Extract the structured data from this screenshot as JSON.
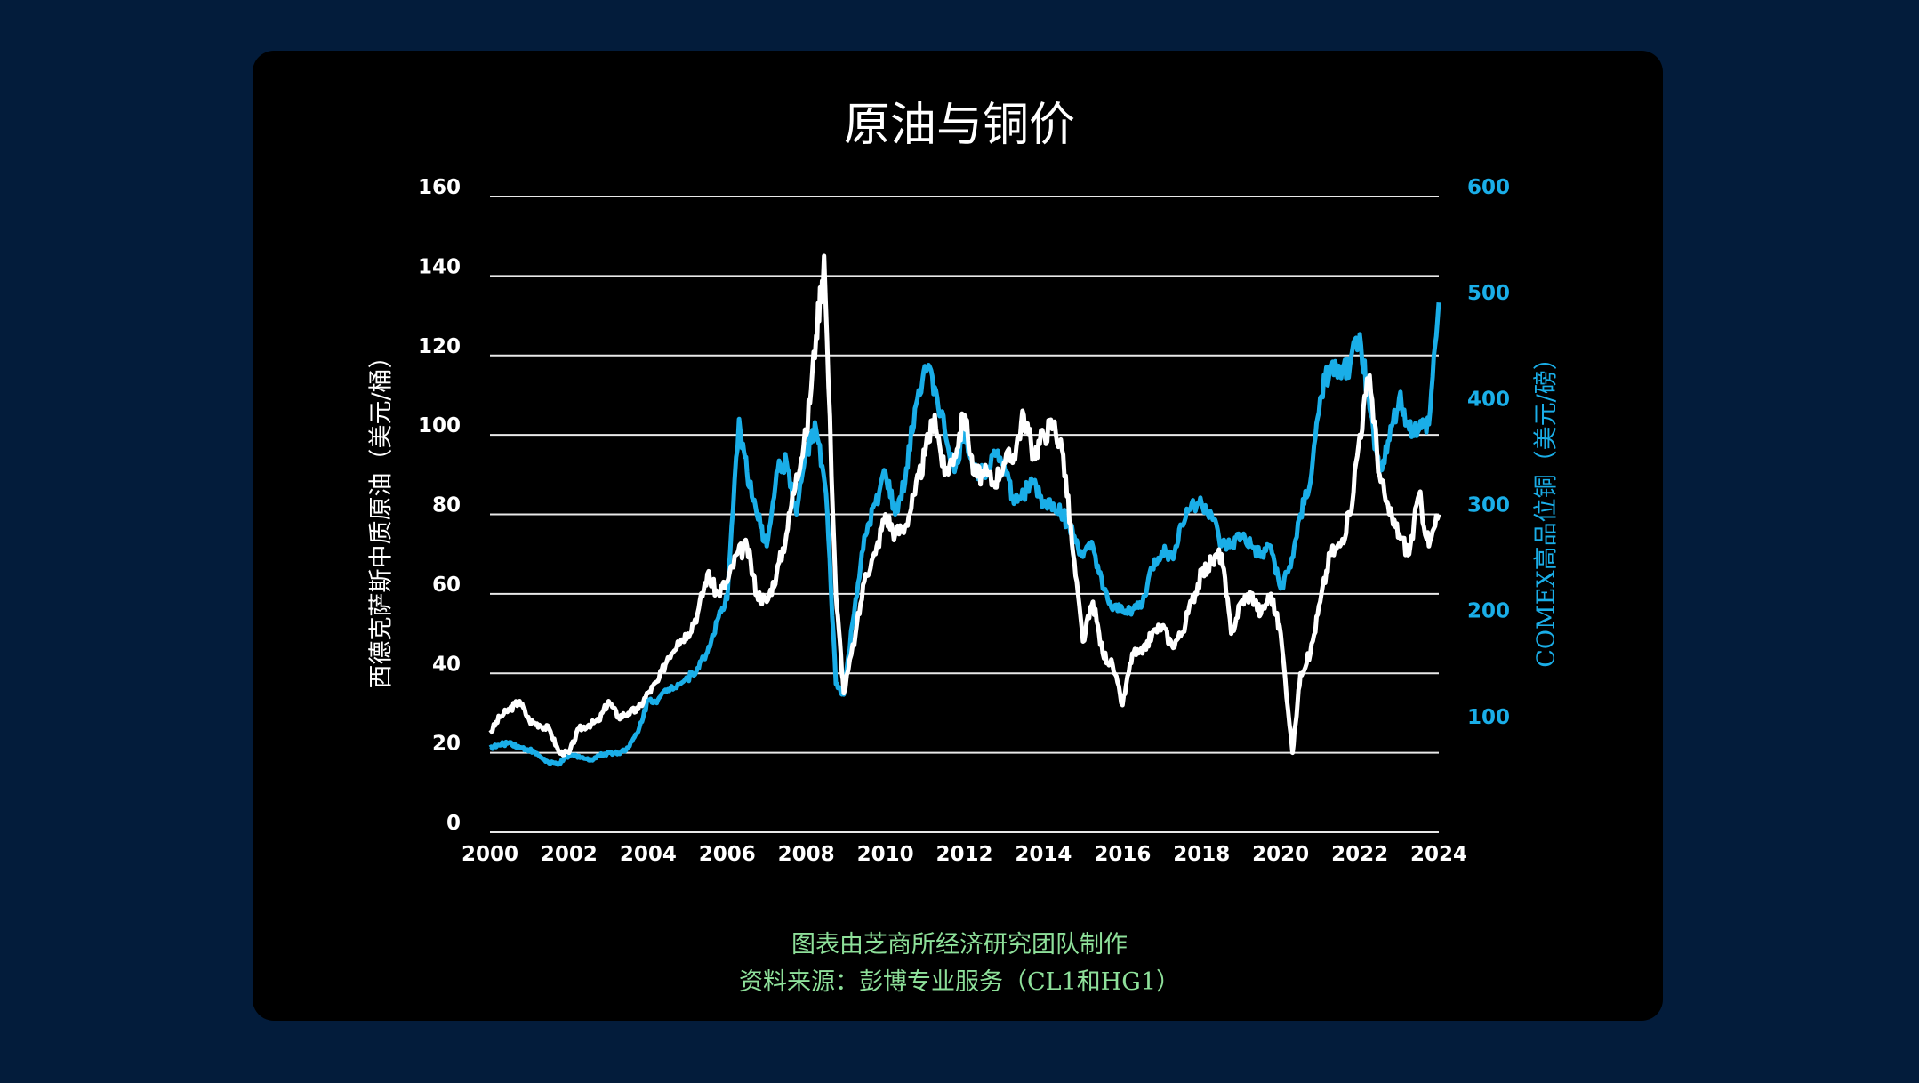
{
  "chart_data": {
    "type": "line",
    "title": "原油与铜价",
    "ylabel_left": "西德克萨斯中质原油（美元/桶）",
    "ylabel_right": "COMEX高品位铜（美元/磅）",
    "xlim": [
      2000,
      2024
    ],
    "ylim_left": [
      0,
      160
    ],
    "ylim_right": [
      0,
      600
    ],
    "x_ticks": [
      "2000",
      "2002",
      "2004",
      "2006",
      "2008",
      "2010",
      "2012",
      "2014",
      "2016",
      "2018",
      "2020",
      "2022",
      "2024"
    ],
    "y_ticks_left": [
      "0",
      "20",
      "40",
      "60",
      "80",
      "100",
      "120",
      "140",
      "160"
    ],
    "y_ticks_right": [
      "100",
      "200",
      "300",
      "400",
      "500",
      "600"
    ],
    "grid": true,
    "colors": {
      "oil": "#ffffff",
      "copper": "#1aaee8",
      "background": "#000000",
      "page": "#031c3b",
      "footer": "#8ee09a"
    },
    "series": [
      {
        "axis": "left",
        "color": "#ffffff",
        "x": [
          2000,
          2000.25,
          2000.5,
          2000.75,
          2001,
          2001.25,
          2001.5,
          2001.75,
          2002,
          2002.25,
          2002.5,
          2002.75,
          2003,
          2003.25,
          2003.5,
          2003.75,
          2004,
          2004.25,
          2004.5,
          2004.75,
          2005,
          2005.25,
          2005.5,
          2005.75,
          2006,
          2006.25,
          2006.5,
          2006.75,
          2007,
          2007.25,
          2007.5,
          2007.75,
          2008,
          2008.25,
          2008.45,
          2008.75,
          2008.95,
          2009.25,
          2009.5,
          2009.75,
          2010,
          2010.25,
          2010.5,
          2010.75,
          2011,
          2011.25,
          2011.5,
          2011.75,
          2012,
          2012.25,
          2012.5,
          2012.75,
          2013,
          2013.25,
          2013.5,
          2013.75,
          2014,
          2014.25,
          2014.5,
          2014.75,
          2015,
          2015.25,
          2015.5,
          2015.75,
          2016,
          2016.25,
          2016.5,
          2016.75,
          2017,
          2017.25,
          2017.5,
          2017.75,
          2018,
          2018.25,
          2018.5,
          2018.75,
          2019,
          2019.25,
          2019.5,
          2019.75,
          2020,
          2020.3,
          2020.5,
          2020.75,
          2021,
          2021.25,
          2021.5,
          2021.75,
          2022,
          2022.25,
          2022.5,
          2022.75,
          2023,
          2023.25,
          2023.5,
          2023.75,
          2024
        ],
        "values": [
          25,
          29,
          31,
          33,
          28,
          27,
          26,
          20,
          20,
          26,
          27,
          28,
          33,
          29,
          30,
          31,
          35,
          38,
          44,
          48,
          50,
          55,
          65,
          60,
          63,
          70,
          72,
          60,
          58,
          65,
          75,
          90,
          100,
          125,
          145,
          60,
          35,
          50,
          65,
          70,
          80,
          75,
          77,
          85,
          95,
          105,
          90,
          95,
          105,
          90,
          90,
          88,
          93,
          95,
          105,
          95,
          100,
          103,
          95,
          70,
          48,
          58,
          45,
          42,
          32,
          45,
          45,
          50,
          52,
          47,
          50,
          58,
          65,
          68,
          70,
          50,
          58,
          60,
          55,
          60,
          50,
          20,
          40,
          45,
          58,
          70,
          72,
          80,
          100,
          115,
          90,
          80,
          75,
          70,
          85,
          72,
          80
        ]
      },
      {
        "axis": "right",
        "color": "#1aaee8",
        "x": [
          2000,
          2000.25,
          2000.5,
          2000.75,
          2001,
          2001.25,
          2001.5,
          2001.75,
          2002,
          2002.25,
          2002.5,
          2002.75,
          2003,
          2003.25,
          2003.5,
          2003.75,
          2004,
          2004.25,
          2004.5,
          2004.75,
          2005,
          2005.25,
          2005.5,
          2005.75,
          2006,
          2006.3,
          2006.5,
          2006.75,
          2007,
          2007.25,
          2007.5,
          2007.75,
          2008,
          2008.25,
          2008.5,
          2008.75,
          2008.95,
          2009.25,
          2009.5,
          2009.75,
          2010,
          2010.25,
          2010.5,
          2010.75,
          2011,
          2011.25,
          2011.5,
          2011.75,
          2012,
          2012.25,
          2012.5,
          2012.75,
          2013,
          2013.25,
          2013.5,
          2013.75,
          2014,
          2014.25,
          2014.5,
          2014.75,
          2015,
          2015.25,
          2015.5,
          2015.75,
          2016,
          2016.25,
          2016.5,
          2016.75,
          2017,
          2017.25,
          2017.5,
          2017.75,
          2018,
          2018.25,
          2018.5,
          2018.75,
          2019,
          2019.25,
          2019.5,
          2019.75,
          2020,
          2020.25,
          2020.5,
          2020.75,
          2021,
          2021.25,
          2021.5,
          2021.75,
          2022,
          2022.25,
          2022.5,
          2022.75,
          2023,
          2023.25,
          2023.5,
          2023.75,
          2024
        ],
        "values": [
          80,
          82,
          85,
          80,
          78,
          72,
          65,
          65,
          72,
          72,
          68,
          72,
          75,
          75,
          80,
          95,
          125,
          125,
          135,
          140,
          145,
          155,
          170,
          200,
          220,
          390,
          340,
          300,
          270,
          340,
          350,
          300,
          360,
          380,
          320,
          140,
          130,
          220,
          280,
          310,
          340,
          300,
          330,
          400,
          440,
          420,
          380,
          340,
          380,
          340,
          340,
          360,
          350,
          310,
          320,
          330,
          310,
          310,
          300,
          280,
          260,
          270,
          230,
          210,
          210,
          210,
          215,
          250,
          265,
          260,
          290,
          310,
          310,
          300,
          270,
          270,
          280,
          270,
          260,
          270,
          230,
          250,
          300,
          330,
          410,
          440,
          430,
          440,
          470,
          400,
          340,
          370,
          410,
          380,
          380,
          385,
          500
        ]
      }
    ]
  },
  "footer": {
    "credit": "图表由芝商所经济研究团队制作",
    "source": "资料来源：彭博专业服务（CL1和HG1）"
  }
}
